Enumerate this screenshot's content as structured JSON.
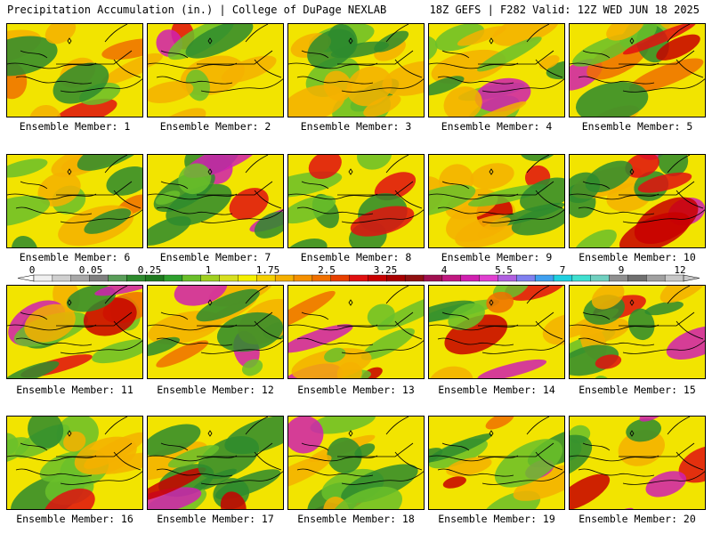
{
  "header": {
    "left": "Precipitation Accumulation (in.) | College of DuPage NEXLAB",
    "right": "18Z GEFS | F282 Valid: 12Z WED JUN 18 2025"
  },
  "members": [
    {
      "label": "Ensemble Member: 1",
      "intensity": 0.55
    },
    {
      "label": "Ensemble Member: 2",
      "intensity": 0.35
    },
    {
      "label": "Ensemble Member: 3",
      "intensity": 0.6
    },
    {
      "label": "Ensemble Member: 4",
      "intensity": 0.6
    },
    {
      "label": "Ensemble Member: 5",
      "intensity": 0.6
    },
    {
      "label": "Ensemble Member: 6",
      "intensity": 0.35
    },
    {
      "label": "Ensemble Member: 7",
      "intensity": 0.6
    },
    {
      "label": "Ensemble Member: 8",
      "intensity": 0.4
    },
    {
      "label": "Ensemble Member: 9",
      "intensity": 0.35
    },
    {
      "label": "Ensemble Member: 10",
      "intensity": 0.4
    },
    {
      "label": "Ensemble Member: 11",
      "intensity": 0.45
    },
    {
      "label": "Ensemble Member: 12",
      "intensity": 0.35
    },
    {
      "label": "Ensemble Member: 13",
      "intensity": 0.35
    },
    {
      "label": "Ensemble Member: 14",
      "intensity": 0.7
    },
    {
      "label": "Ensemble Member: 15",
      "intensity": 0.35
    },
    {
      "label": "Ensemble Member: 16",
      "intensity": 0.3
    },
    {
      "label": "Ensemble Member: 17",
      "intensity": 0.5
    },
    {
      "label": "Ensemble Member: 18",
      "intensity": 0.4
    },
    {
      "label": "Ensemble Member: 19",
      "intensity": 0.45
    },
    {
      "label": "Ensemble Member: 20",
      "intensity": 0.65
    }
  ],
  "colorbar": {
    "tick_labels": [
      "0",
      "0.05",
      "0.25",
      "1",
      "1.75",
      "2.5",
      "3.25",
      "4",
      "5.5",
      "7",
      "9",
      "12"
    ],
    "colors": [
      "#f0f0f0",
      "#d0d0d0",
      "#a8a8a8",
      "#808080",
      "#5a9e5a",
      "#2e8b2e",
      "#1f7a1f",
      "#2ea02e",
      "#6abf2a",
      "#a0d020",
      "#d8e020",
      "#f5f000",
      "#f5d000",
      "#f5b000",
      "#f59000",
      "#f07000",
      "#e84000",
      "#e01010",
      "#c80000",
      "#a80000",
      "#901010",
      "#a01050",
      "#c01880",
      "#d020b0",
      "#e040d0",
      "#b060e0",
      "#8080f0",
      "#40a0f0",
      "#20d0e0",
      "#40e0d0",
      "#70d0c0",
      "#909090",
      "#707070",
      "#a0a0a0",
      "#c8c8c8"
    ]
  }
}
